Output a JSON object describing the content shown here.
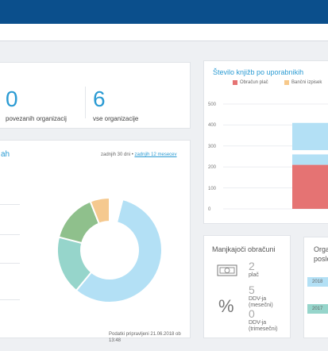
{
  "stats": {
    "connected": {
      "value": "0",
      "label": "povezanih organizacij"
    },
    "all": {
      "value": "6",
      "label": "vse organizacije"
    }
  },
  "donut_card": {
    "title_fragment": "ah",
    "range_text": "zadnjih 30 dni •",
    "range_link": "zadnjih 12 mesecev",
    "footer": "Podatki pripravljeni 21.06.2018 ob 13:48"
  },
  "bar_card": {
    "title": "Število knjižb po uporabnikih",
    "legend": [
      {
        "name": "Obračun plač",
        "color": "#e57373"
      },
      {
        "name": "Bančni izpisek",
        "color": "#f7c98b"
      }
    ],
    "yticks": [
      "500",
      "400",
      "300",
      "200",
      "100",
      "0"
    ]
  },
  "missing_card": {
    "title": "Manjkajoči obračuni",
    "items": [
      {
        "icon": "money-icon",
        "value": "2",
        "label": "plač"
      },
      {
        "icon": "percent-icon",
        "value": "5",
        "label": "DDV-ja (mesečni)"
      },
      {
        "icon": "",
        "value": "0",
        "label": "DDV-ja (trimesečni)"
      }
    ]
  },
  "org_card": {
    "title_line1": "Orga",
    "title_line2": "poslo",
    "years": [
      "2018",
      "2017"
    ]
  },
  "chart_data": [
    {
      "type": "pie",
      "donut": true,
      "slices": [
        {
          "value": 57,
          "color": "#b3e0f5"
        },
        {
          "value": 18,
          "color": "#96d5cb"
        },
        {
          "value": 15,
          "color": "#8fc08c"
        },
        {
          "value": 6,
          "color": "#f5c98f"
        },
        {
          "value": 4,
          "color": "#ffffff"
        }
      ]
    },
    {
      "type": "bar",
      "stacked": true,
      "ylim": [
        0,
        500
      ],
      "yticks": [
        0,
        100,
        200,
        300,
        400,
        500
      ],
      "segments": [
        {
          "name": "Obračun plač",
          "value": 210,
          "color": "#e57373"
        },
        {
          "name": "",
          "value": 50,
          "color": "#b3e0f5"
        },
        {
          "name": "",
          "value": 20,
          "color": "#ffffff"
        },
        {
          "name": "",
          "value": 130,
          "color": "#b3e0f5"
        }
      ]
    }
  ]
}
